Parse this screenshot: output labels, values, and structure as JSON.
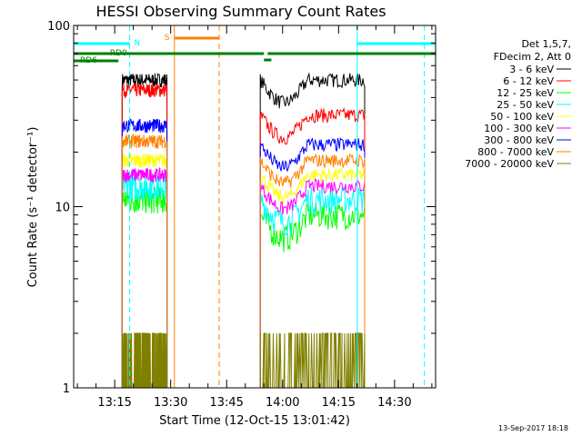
{
  "chart_data": {
    "type": "line",
    "title": "HESSI Observing Summary Count Rates",
    "xlabel": "Start Time (12-Oct-15 13:01:42)",
    "ylabel": "Count Rate (s⁻¹ detector⁻¹)",
    "y_scale": "log",
    "ylim": [
      1,
      100
    ],
    "xlim": [
      "13:04",
      "14:41"
    ],
    "x_ticks": [
      "13:15",
      "13:30",
      "13:45",
      "14:00",
      "14:15",
      "14:30"
    ],
    "y_ticks": [
      "1",
      "10",
      "100"
    ],
    "legend_header": [
      "Det 1,5,7,",
      "FDecim 2, Att 0"
    ],
    "series": [
      {
        "name": "3 - 6 keV",
        "color": "#000000",
        "seg1": 50,
        "seg2": 50
      },
      {
        "name": "6 - 12 keV",
        "color": "#ff0000",
        "seg1": 44,
        "seg2": 32
      },
      {
        "name": "12 - 25 keV",
        "color": "#00ff00",
        "seg1": 11,
        "seg2": 9
      },
      {
        "name": "25 - 50 keV",
        "color": "#00ffff",
        "seg1": 13,
        "seg2": 11
      },
      {
        "name": "50 - 100 keV",
        "color": "#ffff00",
        "seg1": 18,
        "seg2": 15
      },
      {
        "name": "100 - 300 keV",
        "color": "#ff00ff",
        "seg1": 15,
        "seg2": 13
      },
      {
        "name": "300 - 800 keV",
        "color": "#0000ff",
        "seg1": 28,
        "seg2": 22
      },
      {
        "name": "800 - 7000 keV",
        "color": "#ff8000",
        "seg1": 23,
        "seg2": 18
      },
      {
        "name": "7000 - 20000 keV",
        "color": "#808000",
        "seg1": 2,
        "seg2": 2
      }
    ],
    "data_gaps": {
      "seg1": [
        "13:17",
        "13:29"
      ],
      "seg2": [
        "13:54",
        "14:22"
      ]
    },
    "flag_labels": {
      "N": "N",
      "S": "S",
      "RD0": "RD0",
      "RD6": "RD6"
    },
    "flag_colors": {
      "N": "#00ffff",
      "S": "#ff8000",
      "RD": "#008000"
    },
    "timestamp": "13-Sep-2017 18:18"
  }
}
